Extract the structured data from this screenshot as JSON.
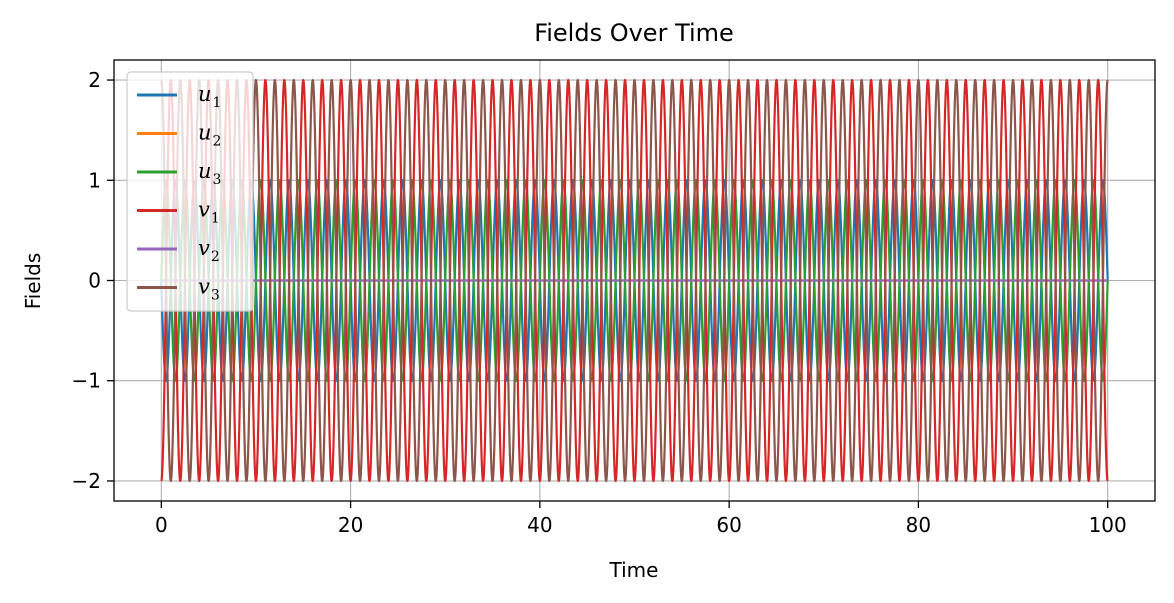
{
  "chart_data": {
    "type": "line",
    "title": "Fields Over Time",
    "xlabel": "Time",
    "ylabel": "Fields",
    "xlim": [
      -5,
      105
    ],
    "ylim": [
      -2.2,
      2.2
    ],
    "xticks": [
      0,
      20,
      40,
      60,
      80,
      100
    ],
    "yticks": [
      -2,
      -1,
      0,
      1,
      2
    ],
    "xtick_labels": [
      "0",
      "20",
      "40",
      "60",
      "80",
      "100"
    ],
    "ytick_labels": [
      "−2",
      "−1",
      "0",
      "1",
      "2"
    ],
    "grid": true,
    "legend_position": "top-left",
    "x_range": [
      0,
      100
    ],
    "series": [
      {
        "name": "u_1",
        "label_main": "u",
        "label_sub": "1",
        "color": "#1f77b4",
        "amplitude": 1.0,
        "frequency": 0.5,
        "phase": 1.5708
      },
      {
        "name": "u_2",
        "label_main": "u",
        "label_sub": "2",
        "color": "#ff7f0e",
        "amplitude": 0.0,
        "frequency": 0.5,
        "phase": 0
      },
      {
        "name": "u_3",
        "label_main": "u",
        "label_sub": "3",
        "color": "#2ca02c",
        "amplitude": 1.0,
        "frequency": 0.5,
        "phase": -1.5708
      },
      {
        "name": "v_1",
        "label_main": "v",
        "label_sub": "1",
        "color": "#d62728",
        "amplitude": 2.0,
        "frequency": 0.5,
        "phase": 3.1416
      },
      {
        "name": "v_2",
        "label_main": "v",
        "label_sub": "2",
        "color": "#9467bd",
        "amplitude": 0.0,
        "frequency": 0.5,
        "phase": 0
      },
      {
        "name": "v_3",
        "label_main": "v",
        "label_sub": "3",
        "color": "#8c564b",
        "amplitude": 2.0,
        "frequency": 0.5,
        "phase": 0
      }
    ]
  }
}
